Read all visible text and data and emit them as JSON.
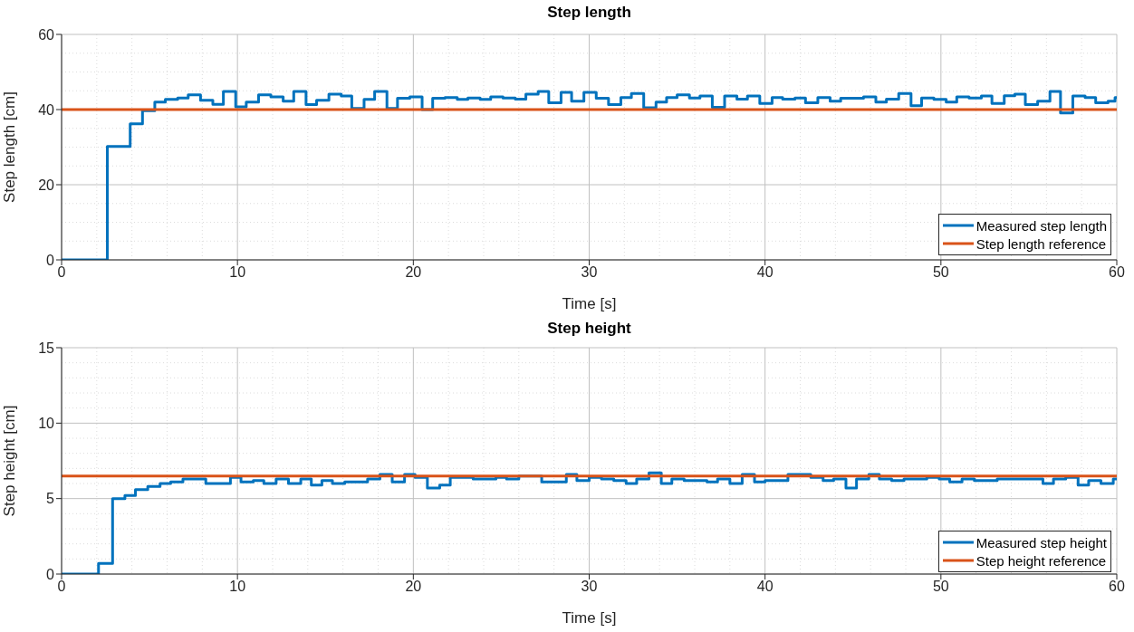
{
  "chart_data": [
    {
      "type": "step",
      "title": "Step length",
      "xlabel": "Time [s]",
      "ylabel": "Step length [cm]",
      "xlim": [
        0,
        60
      ],
      "xticks": [
        0,
        {
          "value": 2,
          "label": null
        },
        {
          "value": 4,
          "label": null
        },
        {
          "value": 6,
          "label": null
        },
        {
          "value": 8,
          "label": null
        },
        10,
        {
          "value": 12,
          "label": null
        },
        {
          "value": 14,
          "label": null
        },
        {
          "value": 16,
          "label": null
        },
        {
          "value": 18,
          "label": null
        },
        20,
        {
          "value": 22,
          "label": null
        },
        {
          "value": 24,
          "label": null
        },
        {
          "value": 26,
          "label": null
        },
        {
          "value": 28,
          "label": null
        },
        30,
        {
          "value": 32,
          "label": null
        },
        {
          "value": 34,
          "label": null
        },
        {
          "value": 36,
          "label": null
        },
        {
          "value": 38,
          "label": null
        },
        40,
        {
          "value": 42,
          "label": null
        },
        {
          "value": 44,
          "label": null
        },
        {
          "value": 46,
          "label": null
        },
        {
          "value": 48,
          "label": null
        },
        50,
        {
          "value": 52,
          "label": null
        },
        {
          "value": 54,
          "label": null
        },
        {
          "value": 56,
          "label": null
        },
        {
          "value": 58,
          "label": null
        },
        60
      ],
      "ylim": [
        0,
        60
      ],
      "yticks": [
        0,
        {
          "value": 5,
          "label": null
        },
        {
          "value": 10,
          "label": null
        },
        {
          "value": 15,
          "label": null
        },
        20,
        {
          "value": 25,
          "label": null
        },
        {
          "value": 30,
          "label": null
        },
        {
          "value": 35,
          "label": null
        },
        40,
        {
          "value": 45,
          "label": null
        },
        {
          "value": 50,
          "label": null
        },
        {
          "value": 55,
          "label": null
        },
        60
      ],
      "grid": true,
      "legend": "bottom right",
      "series": [
        {
          "name": "Measured step length",
          "color": "#0072bd",
          "x": [
            0,
            2.6,
            3.9,
            4.6,
            5.3,
            5.9,
            6.6,
            7.2,
            7.9,
            8.6,
            9.2,
            9.9,
            10.5,
            11.2,
            11.9,
            12.6,
            13.2,
            13.9,
            14.5,
            15.2,
            15.9,
            16.5,
            17.2,
            17.8,
            18.5,
            19.1,
            19.8,
            20.5,
            21.1,
            21.8,
            22.5,
            23.1,
            23.8,
            24.4,
            25.1,
            25.8,
            26.4,
            27.1,
            27.7,
            28.4,
            29.0,
            29.7,
            30.4,
            31.1,
            31.8,
            32.4,
            33.1,
            33.8,
            34.4,
            35.0,
            35.7,
            36.3,
            37.0,
            37.7,
            38.4,
            39.0,
            39.7,
            40.4,
            41.0,
            41.7,
            42.3,
            43.0,
            43.7,
            44.3,
            45.6,
            46.3,
            46.9,
            47.6,
            48.3,
            48.9,
            49.6,
            50.3,
            50.9,
            51.6,
            52.3,
            52.9,
            53.6,
            54.2,
            54.8,
            55.5,
            56.2,
            56.8,
            57.5,
            58.2,
            58.8,
            59.5,
            59.9,
            60
          ],
          "values": [
            0,
            30.2,
            36.2,
            39.7,
            42.0,
            42.7,
            43.1,
            43.9,
            42.5,
            41.4,
            44.8,
            40.7,
            42.0,
            43.9,
            43.4,
            42.2,
            44.8,
            41.3,
            42.5,
            44.1,
            43.6,
            40.3,
            42.7,
            44.8,
            40.3,
            43.0,
            43.4,
            40.0,
            43.0,
            43.2,
            42.7,
            43.1,
            42.7,
            43.4,
            43.1,
            42.8,
            44.1,
            44.8,
            41.8,
            44.6,
            42.2,
            44.6,
            43.0,
            41.3,
            43.2,
            44.3,
            40.5,
            42.0,
            43.2,
            43.9,
            43.1,
            43.6,
            40.6,
            43.6,
            42.8,
            43.6,
            41.6,
            43.2,
            42.8,
            43.1,
            41.8,
            43.2,
            42.2,
            43.0,
            43.4,
            42.0,
            42.8,
            44.3,
            41.0,
            43.1,
            42.7,
            42.0,
            43.4,
            43.1,
            43.6,
            41.6,
            43.7,
            44.1,
            41.3,
            42.2,
            44.8,
            39.1,
            43.6,
            43.2,
            41.8,
            42.2,
            43.2,
            43.2
          ]
        },
        {
          "name": "Step length reference",
          "color": "#d95319",
          "type": "line",
          "x": [
            0,
            60
          ],
          "values": [
            40,
            40
          ]
        }
      ]
    },
    {
      "type": "step",
      "title": "Step height",
      "xlabel": "Time [s]",
      "ylabel": "Step height [cm]",
      "xlim": [
        0,
        60
      ],
      "xticks": [
        0,
        {
          "value": 2,
          "label": null
        },
        {
          "value": 4,
          "label": null
        },
        {
          "value": 6,
          "label": null
        },
        {
          "value": 8,
          "label": null
        },
        10,
        {
          "value": 12,
          "label": null
        },
        {
          "value": 14,
          "label": null
        },
        {
          "value": 16,
          "label": null
        },
        {
          "value": 18,
          "label": null
        },
        20,
        {
          "value": 22,
          "label": null
        },
        {
          "value": 24,
          "label": null
        },
        {
          "value": 26,
          "label": null
        },
        {
          "value": 28,
          "label": null
        },
        30,
        {
          "value": 32,
          "label": null
        },
        {
          "value": 34,
          "label": null
        },
        {
          "value": 36,
          "label": null
        },
        {
          "value": 38,
          "label": null
        },
        40,
        {
          "value": 42,
          "label": null
        },
        {
          "value": 44,
          "label": null
        },
        {
          "value": 46,
          "label": null
        },
        {
          "value": 48,
          "label": null
        },
        50,
        {
          "value": 52,
          "label": null
        },
        {
          "value": 54,
          "label": null
        },
        {
          "value": 56,
          "label": null
        },
        {
          "value": 58,
          "label": null
        },
        60
      ],
      "ylim": [
        0,
        15
      ],
      "yticks": [
        0,
        {
          "value": 1,
          "label": null
        },
        {
          "value": 2,
          "label": null
        },
        {
          "value": 3,
          "label": null
        },
        {
          "value": 4,
          "label": null
        },
        5,
        {
          "value": 6,
          "label": null
        },
        {
          "value": 7,
          "label": null
        },
        {
          "value": 8,
          "label": null
        },
        {
          "value": 9,
          "label": null
        },
        10,
        {
          "value": 11,
          "label": null
        },
        {
          "value": 12,
          "label": null
        },
        {
          "value": 13,
          "label": null
        },
        {
          "value": 14,
          "label": null
        },
        15
      ],
      "grid": true,
      "legend": "bottom right",
      "series": [
        {
          "name": "Measured step height",
          "color": "#0072bd",
          "x": [
            0,
            2.1,
            2.9,
            3.6,
            4.2,
            4.9,
            5.6,
            6.2,
            6.9,
            7.6,
            8.2,
            8.9,
            9.6,
            10.2,
            10.9,
            11.5,
            12.2,
            12.9,
            13.6,
            14.2,
            14.8,
            15.4,
            16.1,
            16.8,
            17.4,
            18.1,
            18.8,
            19.5,
            20.1,
            20.8,
            21.5,
            22.1,
            23.4,
            24.7,
            25.3,
            26.0,
            27.3,
            28.7,
            29.3,
            30.0,
            30.7,
            31.4,
            32.1,
            32.7,
            33.4,
            34.1,
            34.7,
            35.4,
            36.0,
            36.7,
            37.3,
            38.0,
            38.7,
            39.4,
            40.0,
            40.6,
            41.3,
            42.6,
            43.3,
            43.9,
            44.6,
            45.2,
            45.9,
            46.5,
            47.2,
            47.9,
            49.2,
            49.9,
            50.5,
            51.2,
            51.9,
            53.2,
            54.4,
            55.1,
            55.8,
            56.4,
            57.1,
            57.8,
            58.4,
            59.1,
            59.8,
            60
          ],
          "values": [
            0,
            0.7,
            5.0,
            5.2,
            5.6,
            5.8,
            6.0,
            6.1,
            6.3,
            6.3,
            6.0,
            6.0,
            6.4,
            6.1,
            6.2,
            6.0,
            6.3,
            6.0,
            6.3,
            5.9,
            6.2,
            6.0,
            6.1,
            6.1,
            6.3,
            6.6,
            6.1,
            6.6,
            6.4,
            5.7,
            5.9,
            6.4,
            6.3,
            6.4,
            6.3,
            6.5,
            6.1,
            6.6,
            6.2,
            6.4,
            6.3,
            6.2,
            6.0,
            6.3,
            6.7,
            6.0,
            6.3,
            6.2,
            6.2,
            6.1,
            6.3,
            6.0,
            6.6,
            6.1,
            6.2,
            6.2,
            6.6,
            6.4,
            6.2,
            6.3,
            5.7,
            6.3,
            6.6,
            6.3,
            6.2,
            6.3,
            6.4,
            6.3,
            6.1,
            6.3,
            6.2,
            6.3,
            6.3,
            6.3,
            6.0,
            6.3,
            6.4,
            5.9,
            6.2,
            6.0,
            6.3,
            6.3
          ]
        },
        {
          "name": "Step height reference",
          "color": "#d95319",
          "type": "line",
          "x": [
            0,
            60
          ],
          "values": [
            6.5,
            6.5
          ]
        }
      ]
    }
  ]
}
